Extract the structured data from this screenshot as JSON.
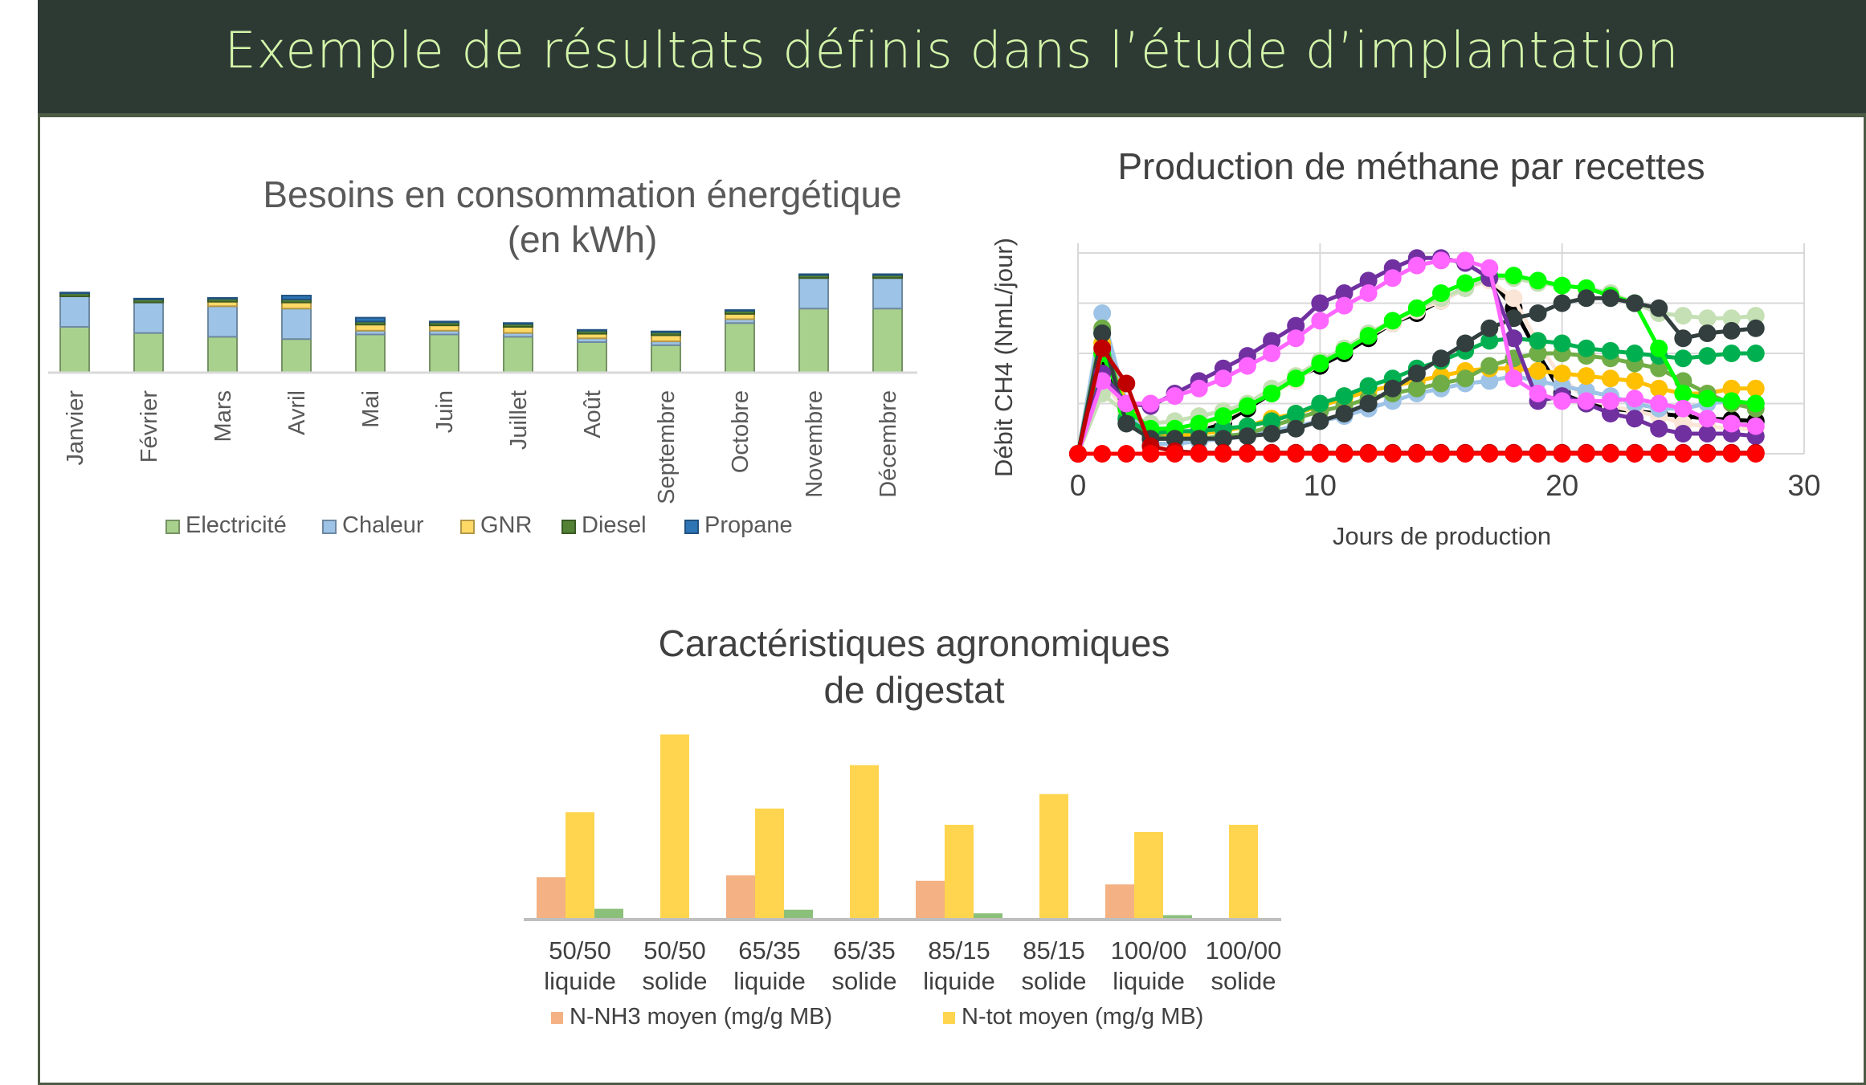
{
  "banner": {
    "title": "Exemple de résultats définis dans l’étude d’implantation"
  },
  "charts": {
    "energy": {
      "title_line1": "Besoins en consommation énergétique",
      "title_line2": "(en kWh)"
    },
    "methane": {
      "title": "Production de méthane par recettes",
      "xlabel": "Jours de production",
      "ylabel": "Débit CH4 (NmL/jour)"
    },
    "digestat": {
      "title_line1": "Caractéristiques agronomiques",
      "title_line2": "de digestat"
    }
  },
  "chart_data": [
    {
      "type": "bar",
      "stacked": true,
      "title": "Besoins en consommation énergétique (en kWh)",
      "categories": [
        "Janvier",
        "Février",
        "Mars",
        "Avril",
        "Mai",
        "Juin",
        "Juillet",
        "Août",
        "Septembre",
        "Octobre",
        "Novembre",
        "Décembre"
      ],
      "series": [
        {
          "name": "Electricité",
          "color": "#a9d18e",
          "values": [
            60,
            52,
            47,
            44,
            50,
            50,
            47,
            40,
            36,
            65,
            84,
            84
          ]
        },
        {
          "name": "Chaleur",
          "color": "#9dc3e6",
          "values": [
            40,
            40,
            40,
            40,
            5,
            5,
            5,
            5,
            5,
            5,
            40,
            40
          ]
        },
        {
          "name": "GNR",
          "color": "#ffd966",
          "values": [
            0,
            0,
            6,
            8,
            8,
            7,
            8,
            6,
            8,
            7,
            0,
            0
          ]
        },
        {
          "name": "Diesel",
          "color": "#548235",
          "values": [
            4,
            4,
            4,
            4,
            4,
            4,
            4,
            4,
            4,
            4,
            4,
            4
          ]
        },
        {
          "name": "Propane",
          "color": "#2e75b6",
          "values": [
            1,
            1,
            1,
            5,
            5,
            1,
            1,
            1,
            1,
            1,
            1,
            1
          ]
        }
      ],
      "legend_position": "bottom",
      "grid": false
    },
    {
      "type": "line",
      "title": "Production de méthane par recettes",
      "xlabel": "Jours de production",
      "ylabel": "Débit CH4 (NmL/jour)",
      "xlim": [
        0,
        30
      ],
      "x_ticks": [
        0,
        10,
        20,
        30
      ],
      "ylim": [
        0,
        4
      ],
      "grid": true,
      "x": [
        0,
        1,
        2,
        3,
        4,
        5,
        6,
        7,
        8,
        9,
        10,
        11,
        12,
        13,
        14,
        15,
        16,
        17,
        18,
        19,
        20,
        21,
        22,
        23,
        24,
        25,
        26,
        27,
        28
      ],
      "series": [
        {
          "color": "#000000",
          "values": [
            0,
            1.9,
            0.9,
            0.3,
            0.3,
            0.45,
            0.6,
            0.9,
            1.2,
            1.5,
            1.75,
            2.0,
            2.3,
            2.6,
            2.8,
            3.05,
            3.3,
            3.5,
            2.9,
            2.0,
            1.2,
            1.0,
            0.9,
            0.85,
            0.8,
            0.75,
            0.7,
            0.68,
            0.65
          ]
        },
        {
          "color": "#fbe5d6",
          "values": [
            0,
            1.5,
            0.8,
            0.45,
            0.5,
            0.55,
            0.7,
            0.95,
            1.2,
            1.45,
            1.8,
            2.05,
            2.35,
            2.6,
            2.85,
            3.05,
            3.3,
            3.45,
            3.1,
            2.2,
            1.5,
            1.1,
            0.95,
            0.85,
            0.75,
            0.6,
            0.55,
            0.5,
            0.5
          ]
        },
        {
          "color": "#c5e0b4",
          "values": [
            0,
            1.2,
            0.8,
            0.6,
            0.65,
            0.75,
            0.85,
            1.0,
            1.3,
            1.55,
            1.85,
            2.1,
            2.4,
            2.65,
            2.9,
            3.1,
            3.3,
            3.5,
            3.5,
            3.4,
            3.35,
            3.3,
            3.2,
            3.0,
            2.8,
            2.75,
            2.7,
            2.7,
            2.75
          ]
        },
        {
          "color": "#9dc3e6",
          "values": [
            0,
            2.8,
            1.0,
            0.2,
            0.2,
            0.25,
            0.3,
            0.35,
            0.45,
            0.55,
            0.65,
            0.75,
            0.9,
            1.05,
            1.2,
            1.3,
            1.4,
            1.45,
            1.55,
            1.45,
            1.35,
            1.25,
            1.15,
            1.0,
            0.9,
            0.9,
            1.0,
            1.05,
            1.0
          ]
        },
        {
          "color": "#ffc000",
          "values": [
            0,
            2.2,
            1.0,
            0.4,
            0.35,
            0.4,
            0.45,
            0.55,
            0.7,
            0.8,
            0.95,
            1.1,
            1.25,
            1.35,
            1.45,
            1.55,
            1.65,
            1.7,
            1.7,
            1.65,
            1.6,
            1.55,
            1.5,
            1.45,
            1.3,
            1.2,
            1.2,
            1.3,
            1.3
          ]
        },
        {
          "color": "#70ad47",
          "values": [
            0,
            2.5,
            0.7,
            0.35,
            0.3,
            0.3,
            0.35,
            0.4,
            0.55,
            0.7,
            0.85,
            0.95,
            1.1,
            1.2,
            1.3,
            1.4,
            1.5,
            1.75,
            1.9,
            2.0,
            2.0,
            1.95,
            1.9,
            1.8,
            1.7,
            1.45,
            1.2,
            1.0,
            0.9
          ]
        },
        {
          "color": "#00b050",
          "values": [
            0,
            2.4,
            0.7,
            0.4,
            0.45,
            0.45,
            0.5,
            0.55,
            0.65,
            0.8,
            1.0,
            1.15,
            1.35,
            1.5,
            1.7,
            1.85,
            2.05,
            2.25,
            2.3,
            2.25,
            2.2,
            2.1,
            2.05,
            2.0,
            1.95,
            1.9,
            1.95,
            2.0,
            2.0
          ]
        },
        {
          "color": "#00ff00",
          "values": [
            0,
            2.0,
            0.9,
            0.5,
            0.5,
            0.6,
            0.75,
            0.95,
            1.2,
            1.5,
            1.8,
            2.05,
            2.35,
            2.65,
            2.9,
            3.2,
            3.4,
            3.55,
            3.55,
            3.45,
            3.35,
            3.3,
            3.15,
            3.0,
            2.1,
            1.2,
            1.1,
            1.05,
            1.0
          ]
        },
        {
          "color": "#333f3f",
          "values": [
            0,
            2.4,
            0.6,
            0.3,
            0.3,
            0.3,
            0.3,
            0.35,
            0.4,
            0.5,
            0.65,
            0.8,
            1.0,
            1.3,
            1.6,
            1.9,
            2.2,
            2.5,
            2.7,
            2.8,
            3.0,
            3.1,
            3.1,
            3.0,
            2.9,
            2.3,
            2.4,
            2.45,
            2.5
          ]
        },
        {
          "color": "#7030a0",
          "values": [
            0,
            1.6,
            1.0,
            0.95,
            1.2,
            1.45,
            1.7,
            1.95,
            2.25,
            2.55,
            3.0,
            3.2,
            3.45,
            3.7,
            3.9,
            3.9,
            3.8,
            3.5,
            2.3,
            1.05,
            1.15,
            1.0,
            0.8,
            0.7,
            0.5,
            0.4,
            0.4,
            0.4,
            0.35
          ]
        },
        {
          "color": "#ff66ff",
          "values": [
            0,
            1.45,
            1.0,
            1.0,
            1.15,
            1.3,
            1.5,
            1.75,
            2.0,
            2.3,
            2.65,
            2.95,
            3.2,
            3.5,
            3.75,
            3.85,
            3.85,
            3.7,
            1.5,
            1.2,
            1.05,
            1.05,
            1.05,
            1.1,
            1.0,
            0.9,
            0.7,
            0.6,
            0.55
          ]
        },
        {
          "color": "#c00000",
          "values": [
            0,
            2.1,
            1.4,
            0.15,
            0.05,
            0.02,
            0.02,
            0.02,
            0.02,
            0.02,
            0.02,
            0.02,
            0.02,
            0.02,
            0.02,
            0.02,
            0.02,
            0.02,
            0.02,
            0.02,
            0.02,
            0.02,
            0.02,
            0.02,
            0.02,
            0.02,
            0.02,
            0.02,
            0.02
          ]
        },
        {
          "color": "#ff0000",
          "values": [
            0,
            0,
            0,
            0,
            0,
            0,
            0,
            0,
            0,
            0,
            0,
            0,
            0,
            0,
            0,
            0,
            0,
            0,
            0,
            0,
            0,
            0,
            0,
            0,
            0,
            0,
            0,
            0,
            0
          ]
        }
      ]
    },
    {
      "type": "bar",
      "title": "Caractéristiques agronomiques de digestat",
      "categories": [
        [
          "50/50",
          "liquide"
        ],
        [
          "50/50",
          "solide"
        ],
        [
          "65/35",
          "liquide"
        ],
        [
          "65/35",
          "solide"
        ],
        [
          "85/15",
          "liquide"
        ],
        [
          "85/15",
          "solide"
        ],
        [
          "100/00",
          "liquide"
        ],
        [
          "100/00",
          "solide"
        ]
      ],
      "series": [
        {
          "name": "N-NH3 moyen (mg/g MB)",
          "color": "#f4b183",
          "values": [
            2.3,
            0,
            2.4,
            0,
            2.1,
            0,
            1.9,
            0
          ]
        },
        {
          "name": "N-tot moyen (mg/g MB)",
          "color": "#ffd54f",
          "values": [
            5.9,
            10.2,
            6.1,
            8.5,
            5.2,
            6.9,
            4.8,
            5.2
          ]
        },
        {
          "name": "",
          "color": "#8bc07a",
          "values": [
            0.55,
            0,
            0.5,
            0,
            0.3,
            0,
            0.2,
            0
          ]
        }
      ],
      "legend_position": "bottom",
      "grid": false
    }
  ]
}
